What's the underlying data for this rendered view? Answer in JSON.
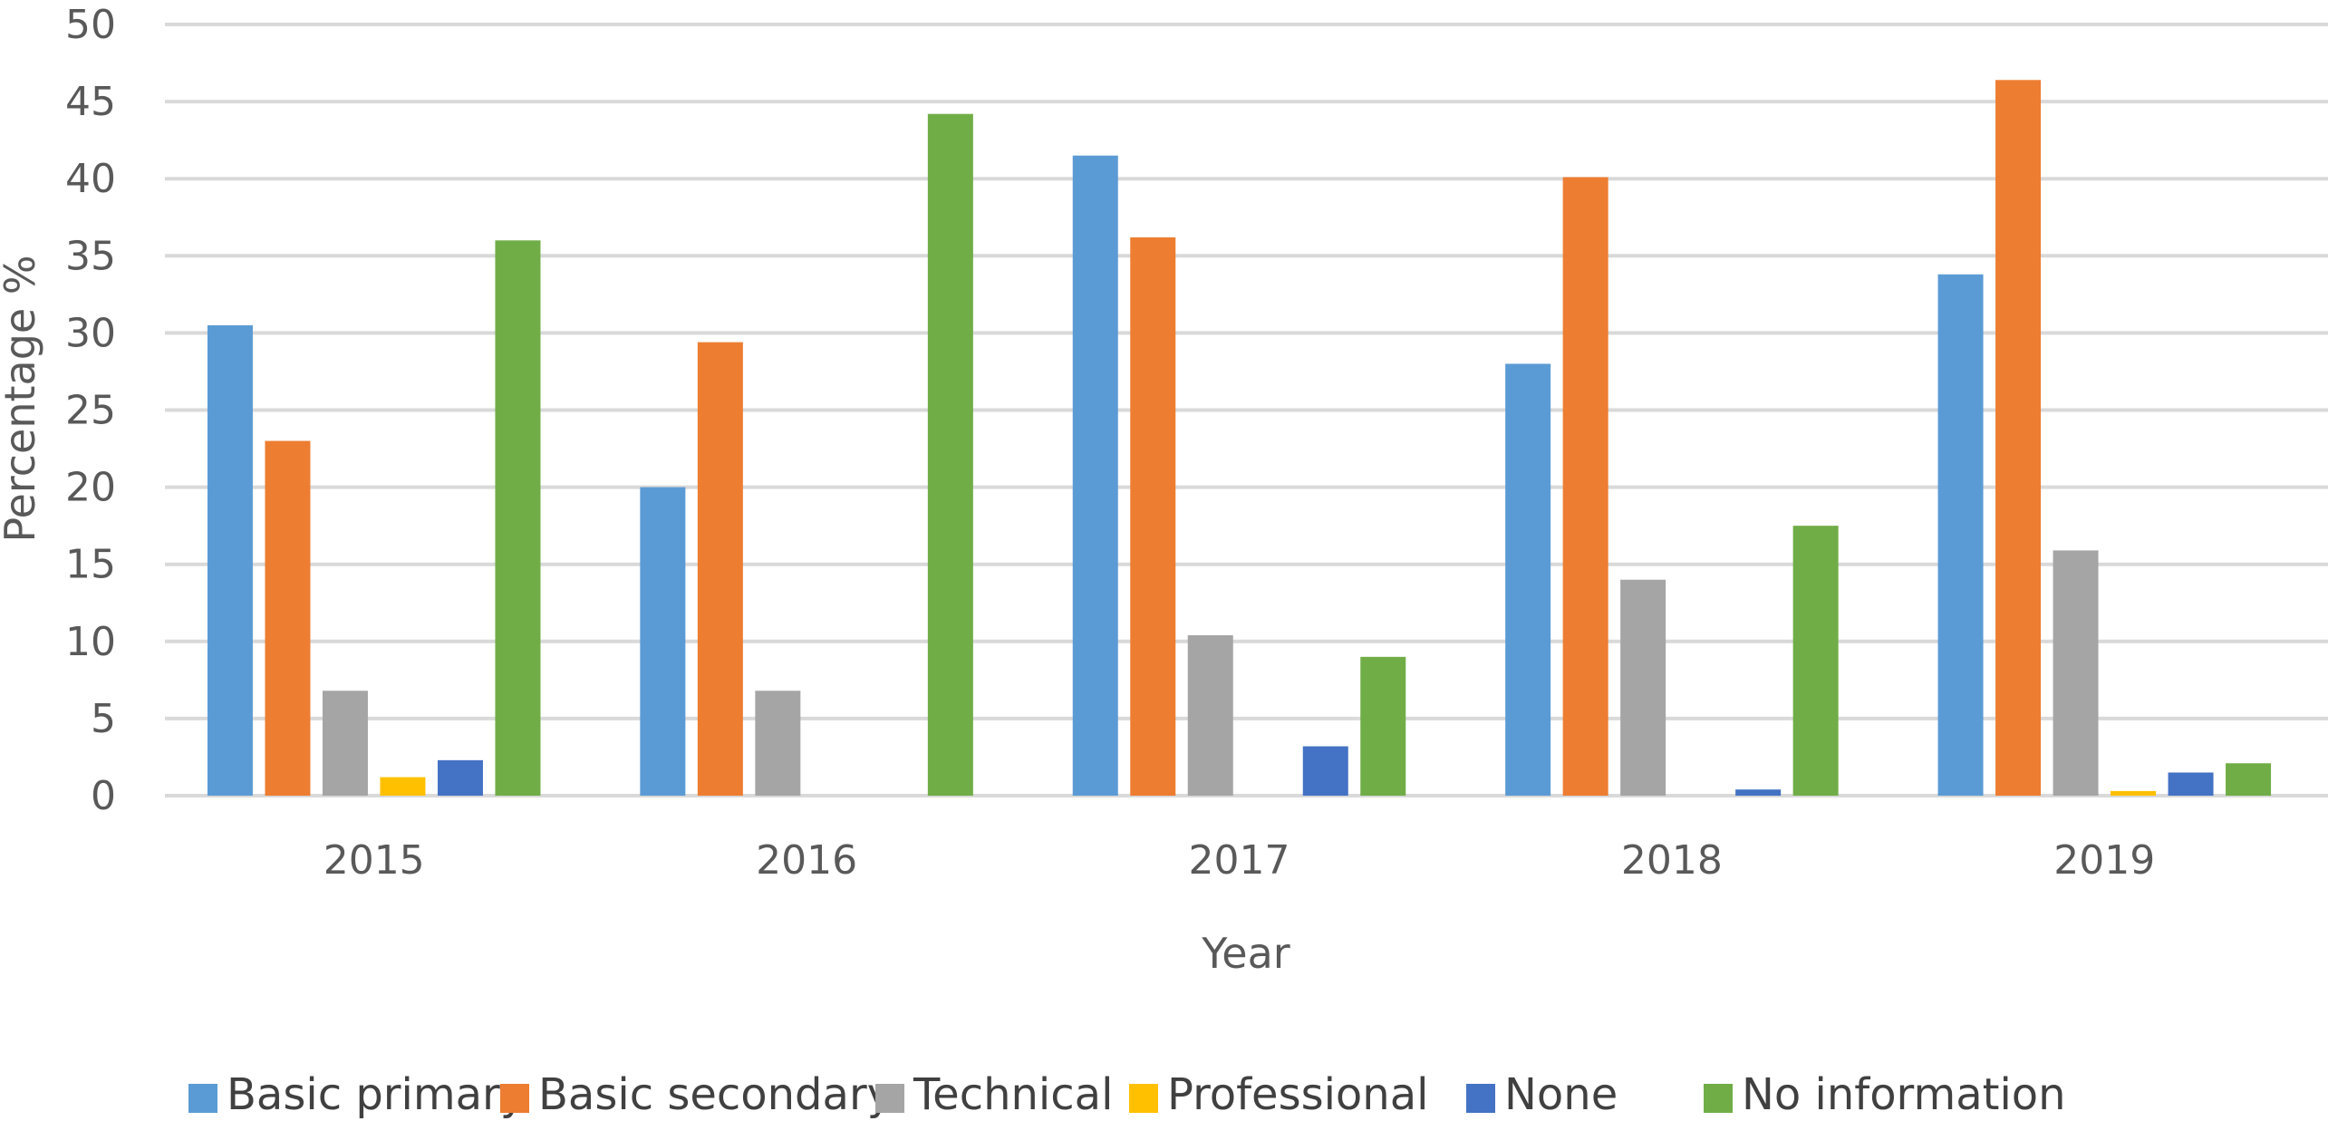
{
  "chart_data": {
    "type": "bar",
    "xlabel": "Year",
    "ylabel": "Percentage %",
    "ylim": [
      0,
      50
    ],
    "ytick_step": 5,
    "grid": true,
    "legend_position": "bottom",
    "categories": [
      "2015",
      "2016",
      "2017",
      "2018",
      "2019"
    ],
    "series": [
      {
        "name": "Basic primary",
        "color": "#5B9BD5",
        "values": [
          30.5,
          20.0,
          41.5,
          28.0,
          33.8
        ]
      },
      {
        "name": "Basic secondary",
        "color": "#ED7D31",
        "values": [
          23.0,
          29.4,
          36.2,
          40.1,
          46.4
        ]
      },
      {
        "name": "Technical",
        "color": "#A5A5A5",
        "values": [
          6.8,
          6.8,
          10.4,
          14.0,
          15.9
        ]
      },
      {
        "name": "Professional",
        "color": "#FFC000",
        "values": [
          1.2,
          0,
          0,
          0,
          0.3
        ]
      },
      {
        "name": "None",
        "color": "#4472C4",
        "values": [
          2.3,
          0,
          3.2,
          0.4,
          1.5
        ]
      },
      {
        "name": "No information",
        "color": "#70AD47",
        "values": [
          36.0,
          44.2,
          9.0,
          17.5,
          2.1
        ]
      }
    ]
  }
}
